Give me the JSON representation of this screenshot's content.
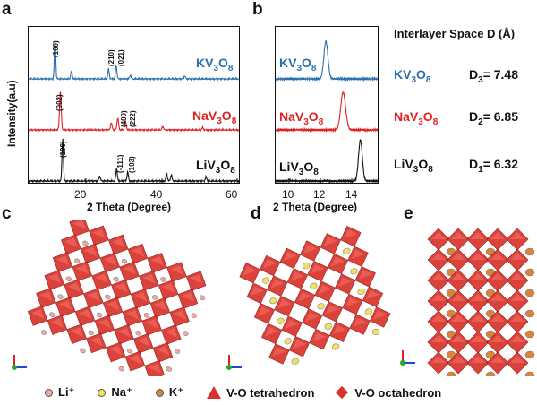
{
  "panels": {
    "a": "a",
    "b": "b",
    "c": "c",
    "d": "d",
    "e": "e"
  },
  "xrd_full": {
    "ylabel": "Intensity(a.u)",
    "xlabel": "2 Theta (Degree)",
    "xticks": [
      "20",
      "40",
      "60"
    ],
    "peaks_K": [
      "(100)",
      "(210)",
      "(021)"
    ],
    "peaks_Na": [
      "(002)",
      "(400)",
      "(222)"
    ],
    "peaks_Li": [
      "(100)",
      "(-111)",
      "(103)"
    ]
  },
  "xrd_zoom": {
    "xlabel": "2 Theta (Degree)",
    "xticks": [
      "10",
      "12",
      "14"
    ]
  },
  "samples": {
    "K": {
      "base": "KV",
      "s1": "3",
      "mid": "O",
      "s2": "8",
      "color": "#2a6fad"
    },
    "Na": {
      "base": "NaV",
      "s1": "3",
      "mid": "O",
      "s2": "8",
      "color": "#e02020"
    },
    "Li": {
      "base": "LiV",
      "s1": "3",
      "mid": "O",
      "s2": "8",
      "color": "#111111"
    }
  },
  "interlayer": {
    "title": "Interlayer Space D (Å)",
    "K": {
      "d": "D",
      "sub": "3",
      "val": "= 7.48"
    },
    "Na": {
      "d": "D",
      "sub": "2",
      "val": "= 6.85"
    },
    "Li": {
      "d": "D",
      "sub": "1",
      "val": "= 6.32"
    }
  },
  "legend": {
    "li": "Li⁺",
    "na": "Na⁺",
    "k": "K⁺",
    "tetra": "V-O tetrahedron",
    "octa": "V-O octahedron"
  },
  "chart_data": [
    {
      "type": "line",
      "panel": "a",
      "xlabel": "2 Theta (Degree)",
      "ylabel": "Intensity(a.u)",
      "xlim": [
        5,
        60
      ],
      "series": [
        {
          "name": "KV3O8",
          "peaks": [
            [
              11.9,
              1.0
            ],
            [
              16.2,
              0.2
            ],
            [
              25.9,
              0.25
            ],
            [
              27.9,
              0.35
            ],
            [
              31.6,
              0.1
            ],
            [
              45.8,
              0.08
            ]
          ]
        },
        {
          "name": "NaV3O8",
          "peaks": [
            [
              13.3,
              1.0
            ],
            [
              26.6,
              0.18
            ],
            [
              28.3,
              0.3
            ],
            [
              30.3,
              0.22
            ],
            [
              40.1,
              0.08
            ],
            [
              50.5,
              0.06
            ]
          ]
        },
        {
          "name": "LiV3O8",
          "peaks": [
            [
              13.9,
              1.0
            ],
            [
              23.6,
              0.12
            ],
            [
              28.0,
              0.3
            ],
            [
              30.9,
              0.22
            ],
            [
              41.1,
              0.18
            ],
            [
              42.3,
              0.15
            ],
            [
              51.4,
              0.1
            ]
          ]
        }
      ]
    },
    {
      "type": "line",
      "panel": "b",
      "xlabel": "2 Theta (Degree)",
      "xlim": [
        8.5,
        15
      ],
      "series": [
        {
          "name": "KV3O8",
          "peaks": [
            [
              11.7,
              1.0
            ]
          ]
        },
        {
          "name": "NaV3O8",
          "peaks": [
            [
              12.8,
              1.0
            ]
          ]
        },
        {
          "name": "LiV3O8",
          "peaks": [
            [
              13.9,
              1.0
            ]
          ]
        }
      ]
    }
  ]
}
